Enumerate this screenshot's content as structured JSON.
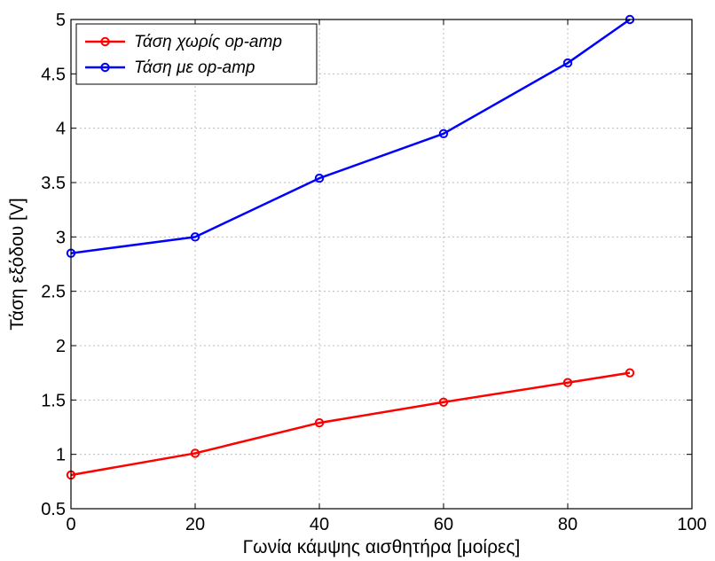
{
  "chart_data": {
    "type": "line",
    "xlabel": "Γωνία κάμψης αισθητήρα [μοίρες]",
    "ylabel": "Τάση εξόδου [V]",
    "xlim": [
      0,
      100
    ],
    "ylim": [
      0.5,
      5
    ],
    "xticks": [
      0,
      20,
      40,
      60,
      80,
      100
    ],
    "yticks": [
      0.5,
      1,
      1.5,
      2,
      2.5,
      3,
      3.5,
      4,
      4.5,
      5
    ],
    "xtick_labels": [
      "0",
      "20",
      "40",
      "60",
      "80",
      "100"
    ],
    "ytick_labels": [
      "0.5",
      "1",
      "1.5",
      "2",
      "2.5",
      "3",
      "3.5",
      "4",
      "4.5",
      "5"
    ],
    "grid": true,
    "legend_position": "top-left",
    "series": [
      {
        "name": "Τάση χωρίς op-amp",
        "color": "#ff0000",
        "marker": "circle",
        "x": [
          0,
          20,
          40,
          60,
          80,
          90
        ],
        "y": [
          0.81,
          1.01,
          1.29,
          1.48,
          1.66,
          1.75
        ]
      },
      {
        "name": "Τάση με op-amp",
        "color": "#0000ff",
        "marker": "circle",
        "x": [
          0,
          20,
          40,
          60,
          80,
          90
        ],
        "y": [
          2.85,
          3.0,
          3.54,
          3.95,
          4.6,
          5.0
        ]
      }
    ]
  }
}
